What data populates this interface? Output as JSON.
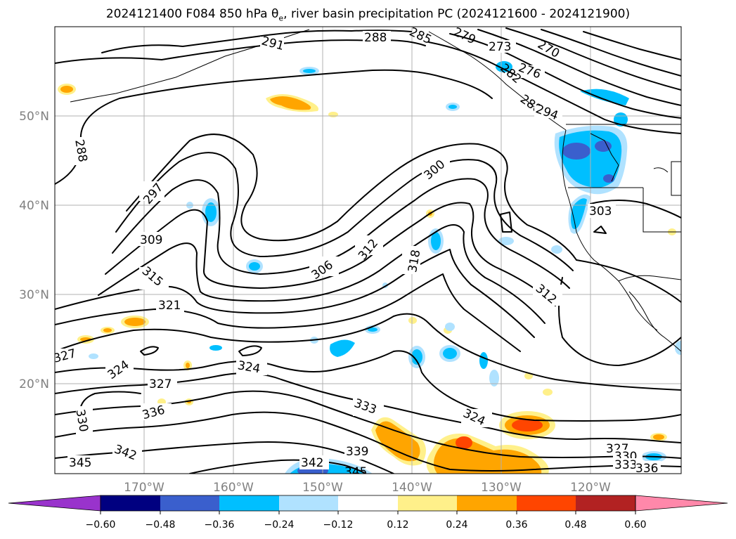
{
  "title": {
    "prefix": "2024121400 F084 850 hPa θ",
    "subscript": "e",
    "suffix": ", river basin precipitation PC (2024121600 - 2024121900)"
  },
  "axes": {
    "lat_labels": [
      "50°N",
      "40°N",
      "30°N",
      "20°N"
    ],
    "lon_labels": [
      "170°W",
      "160°W",
      "150°W",
      "140°W",
      "130°W",
      "120°W"
    ]
  },
  "contour_labels": [
    "291",
    "288",
    "285",
    "279",
    "273",
    "270",
    "276",
    "282",
    "288",
    "294",
    "288",
    "297",
    "300",
    "309",
    "315",
    "321",
    "306",
    "312",
    "318",
    "312",
    "303",
    "327",
    "324",
    "324",
    "327",
    "330",
    "336",
    "333",
    "324",
    "339",
    "342",
    "342",
    "345",
    "345",
    "327",
    "330",
    "333",
    "336"
  ],
  "colorbar": {
    "ticks": [
      "−0.60",
      "−0.48",
      "−0.36",
      "−0.24",
      "−0.12",
      "0.12",
      "0.24",
      "0.36",
      "0.48",
      "0.60"
    ],
    "colors": {
      "under": "#9933cc",
      "bins": [
        "#000080",
        "#3a5fcd",
        "#00bfff",
        "#b0e2ff",
        "#ffffff",
        "#fff08a",
        "#ffa500",
        "#ff4500",
        "#b22222"
      ],
      "over": "#ff88aa"
    }
  }
}
